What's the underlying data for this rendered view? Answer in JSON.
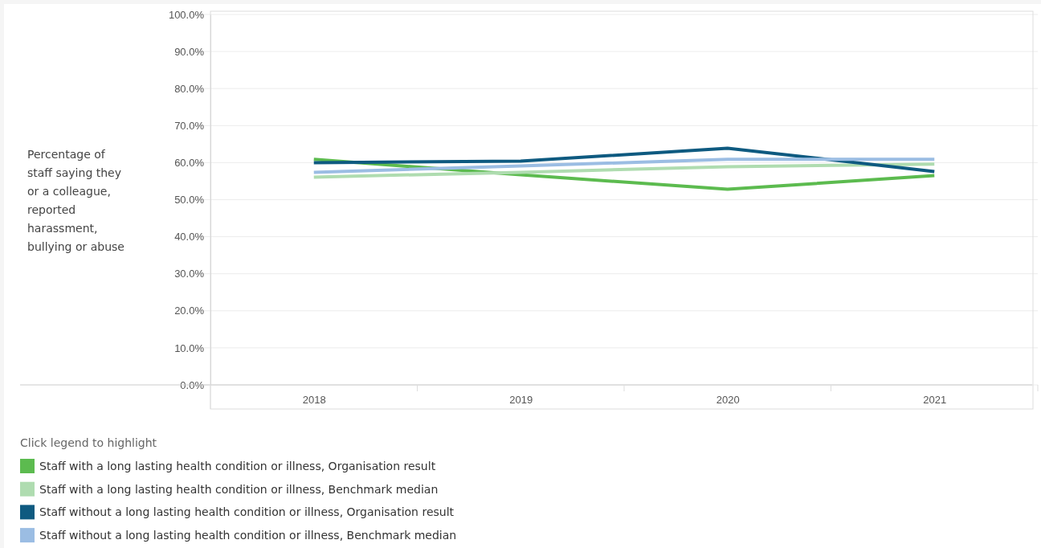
{
  "chart_data": {
    "type": "line",
    "ylabel": "Percentage of staff saying they or a colleague, reported harassment, bullying or abuse",
    "legend_title": "Click legend to highlight",
    "categories": [
      "2018",
      "2019",
      "2020",
      "2021"
    ],
    "series": [
      {
        "name": "Staff with a long lasting health condition or illness, Organisation result",
        "color": "#5cbb4f",
        "values": [
          60.9,
          56.7,
          52.8,
          56.5
        ]
      },
      {
        "name": "Staff with a long lasting health condition or illness, Benchmark median",
        "color": "#afdcb0",
        "values": [
          56.1,
          57.4,
          58.9,
          59.6
        ]
      },
      {
        "name": "Staff without a long lasting health condition or illness, Organisation result",
        "color": "#0e5a80",
        "values": [
          60.0,
          60.4,
          63.9,
          57.6
        ]
      },
      {
        "name": "Staff without a long lasting health condition or illness, Benchmark median",
        "color": "#9bbde3",
        "values": [
          57.4,
          59.1,
          60.9,
          60.9
        ]
      }
    ],
    "ylim": [
      0,
      100
    ],
    "yticks": [
      {
        "value": 0,
        "label": "0.0%"
      },
      {
        "value": 10,
        "label": "10.0%"
      },
      {
        "value": 20,
        "label": "20.0%"
      },
      {
        "value": 30,
        "label": "30.0%"
      },
      {
        "value": 40,
        "label": "40.0%"
      },
      {
        "value": 50,
        "label": "50.0%"
      },
      {
        "value": 60,
        "label": "60.0%"
      },
      {
        "value": 70,
        "label": "70.0%"
      },
      {
        "value": 80,
        "label": "80.0%"
      },
      {
        "value": 90,
        "label": "90.0%"
      },
      {
        "value": 100,
        "label": "100.0%"
      }
    ],
    "grid": "y",
    "legend": "bottom",
    "marker": "none",
    "line_style": "solid"
  }
}
